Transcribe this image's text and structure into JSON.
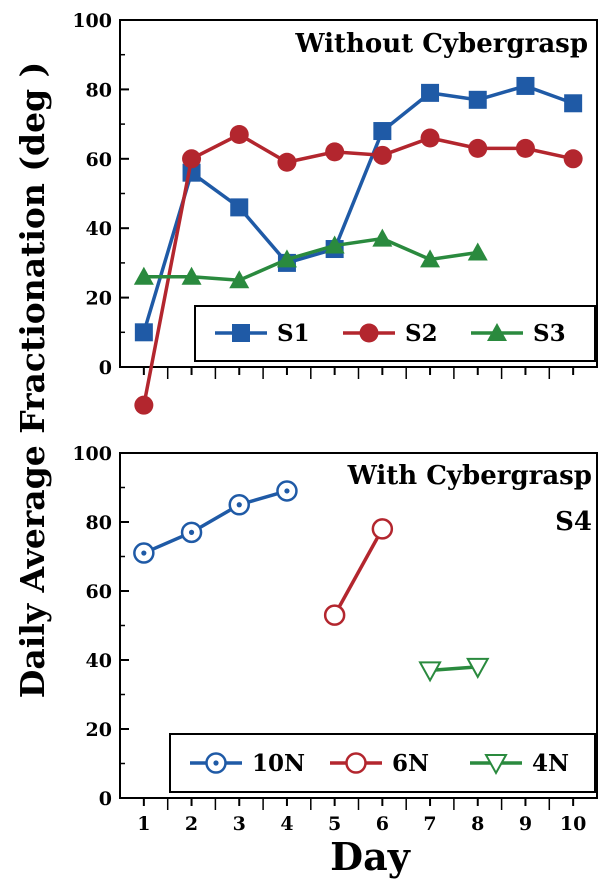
{
  "colors": {
    "blue": "#1f5aa6",
    "red": "#b3262e",
    "green": "#2a8a3e",
    "axis": "#000000"
  },
  "shared": {
    "ylabel": "Daily Average Fractionation  (deg )",
    "xlabel": "Day"
  },
  "chart_data": [
    {
      "type": "line",
      "title": "Without Cybergrasp",
      "subtitle": "",
      "xlabel": "",
      "ylabel": "Daily Average Fractionation  (deg )",
      "xlim": [
        0.5,
        10.5
      ],
      "ylim": [
        0,
        100
      ],
      "yticks": [
        0,
        20,
        40,
        60,
        80,
        100
      ],
      "x_tick_labels_shown": false,
      "grid": false,
      "legend_position": "bottom-right",
      "series": [
        {
          "name": "S1",
          "color": "#1f5aa6",
          "marker": "square",
          "x": [
            1,
            2,
            3,
            4,
            5,
            6,
            7,
            8,
            9,
            10
          ],
          "y": [
            10,
            56,
            46,
            30,
            34,
            68,
            79,
            77,
            81,
            76
          ]
        },
        {
          "name": "S2",
          "color": "#b3262e",
          "marker": "circle",
          "x": [
            1,
            2,
            3,
            4,
            5,
            6,
            7,
            8,
            9,
            10
          ],
          "y": [
            -11,
            60,
            67,
            59,
            62,
            61,
            66,
            63,
            63,
            60
          ]
        },
        {
          "name": "S3",
          "color": "#2a8a3e",
          "marker": "triangle",
          "x": [
            1,
            2,
            3,
            4,
            5,
            6,
            7,
            8
          ],
          "y": [
            26,
            26,
            25,
            31,
            35,
            37,
            31,
            33
          ]
        }
      ]
    },
    {
      "type": "line",
      "title": "With Cybergrasp",
      "subtitle": "S4",
      "xlabel": "Day",
      "ylabel": "Daily Average Fractionation  (deg )",
      "xlim": [
        0.5,
        10.5
      ],
      "ylim": [
        0,
        100
      ],
      "yticks": [
        0,
        20,
        40,
        60,
        80,
        100
      ],
      "xticks": [
        1,
        2,
        3,
        4,
        5,
        6,
        7,
        8,
        9,
        10
      ],
      "x_tick_labels_shown": true,
      "grid": false,
      "legend_position": "bottom-right",
      "series": [
        {
          "name": "10N",
          "color": "#1f5aa6",
          "marker": "dotted-circle",
          "x": [
            1,
            2,
            3,
            4
          ],
          "y": [
            71,
            77,
            85,
            89
          ]
        },
        {
          "name": "6N",
          "color": "#b3262e",
          "marker": "open-circle",
          "x": [
            5,
            6
          ],
          "y": [
            53,
            78
          ]
        },
        {
          "name": "4N",
          "color": "#2a8a3e",
          "marker": "open-down-triangle",
          "x": [
            7,
            8
          ],
          "y": [
            37,
            38
          ]
        }
      ]
    }
  ]
}
